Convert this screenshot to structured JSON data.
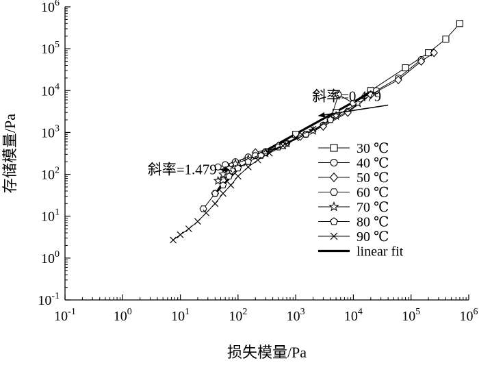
{
  "chart_data": {
    "type": "scatter",
    "scale": "log-log",
    "title": "",
    "xlabel": "损失模量/Pa",
    "ylabel": "存储模量/Pa",
    "xlim": [
      0.1,
      1000000
    ],
    "ylim": [
      0.1,
      1000000
    ],
    "tick_mantissa": "10",
    "x_tick_exponents": [
      "-1",
      "0",
      "1",
      "2",
      "3",
      "4",
      "5",
      "6"
    ],
    "y_tick_exponents": [
      "-1",
      "0",
      "1",
      "2",
      "3",
      "4",
      "5",
      "6"
    ],
    "legend_position": "lower-right",
    "annotations": [
      {
        "id": "slope-high",
        "text": "斜率=0.479",
        "point": [
          2500,
          2500
        ],
        "tail": [
          40000,
          4500
        ]
      },
      {
        "id": "slope-low",
        "text": "斜率=1.479",
        "point": [
          50,
          130
        ],
        "tail": [
          70,
          130
        ]
      }
    ],
    "series": [
      {
        "name": "30 ℃",
        "marker": "square",
        "points": [
          [
            1000,
            900
          ],
          [
            5000,
            3000
          ],
          [
            20000,
            10000
          ],
          [
            80000,
            35000
          ],
          [
            200000,
            80000
          ],
          [
            400000,
            170000
          ],
          [
            700000,
            400000
          ]
        ]
      },
      {
        "name": "40 ℃",
        "marker": "circle",
        "points": [
          [
            45,
            150
          ],
          [
            60,
            170
          ],
          [
            90,
            200
          ],
          [
            150,
            260
          ],
          [
            300,
            350
          ],
          [
            700,
            550
          ],
          [
            1500,
            900
          ],
          [
            3000,
            1500
          ],
          [
            8000,
            3200
          ],
          [
            25000,
            10000
          ],
          [
            60000,
            20000
          ],
          [
            150000,
            55000
          ]
        ]
      },
      {
        "name": "50 ℃",
        "marker": "diamond",
        "points": [
          [
            200,
            330
          ],
          [
            500,
            480
          ],
          [
            1200,
            800
          ],
          [
            3000,
            1400
          ],
          [
            8000,
            3000
          ],
          [
            20000,
            8000
          ],
          [
            60000,
            18000
          ],
          [
            150000,
            50000
          ],
          [
            250000,
            80000
          ]
        ]
      },
      {
        "name": "60 ℃",
        "marker": "hexagon",
        "points": [
          [
            25,
            15
          ],
          [
            40,
            35
          ],
          [
            55,
            70
          ],
          [
            80,
            120
          ],
          [
            120,
            190
          ],
          [
            200,
            280
          ],
          [
            500,
            450
          ],
          [
            1500,
            900
          ],
          [
            4000,
            2000
          ],
          [
            5500,
            8000
          ],
          [
            10000,
            5000
          ]
        ]
      },
      {
        "name": "70 ℃",
        "marker": "star",
        "points": [
          [
            45,
            70
          ],
          [
            55,
            100
          ],
          [
            70,
            140
          ],
          [
            90,
            180
          ],
          [
            150,
            230
          ],
          [
            300,
            320
          ],
          [
            700,
            550
          ],
          [
            2000,
            1100
          ],
          [
            5000,
            2500
          ],
          [
            12000,
            5000
          ]
        ]
      },
      {
        "name": "80 ℃",
        "marker": "pentagon",
        "points": [
          [
            40,
            35
          ],
          [
            55,
            55
          ],
          [
            70,
            90
          ],
          [
            100,
            140
          ],
          [
            150,
            200
          ],
          [
            250,
            280
          ],
          [
            600,
            480
          ],
          [
            1500,
            900
          ],
          [
            4000,
            2000
          ]
        ]
      },
      {
        "name": "90 ℃",
        "marker": "x",
        "points": [
          [
            7.5,
            2.7
          ],
          [
            10,
            3.6
          ],
          [
            14,
            5
          ],
          [
            20,
            7.5
          ],
          [
            28,
            12
          ],
          [
            40,
            20
          ],
          [
            55,
            35
          ],
          [
            75,
            55
          ],
          [
            100,
            90
          ],
          [
            150,
            150
          ],
          [
            220,
            220
          ],
          [
            350,
            320
          ],
          [
            600,
            480
          ],
          [
            1000,
            750
          ],
          [
            2000,
            1200
          ]
        ]
      }
    ],
    "linear_fit": {
      "name": "linear fit",
      "segments": [
        [
          [
            40,
            35
          ],
          [
            160,
            270
          ]
        ],
        [
          [
            200,
            270
          ],
          [
            20000,
            9000
          ]
        ]
      ]
    }
  }
}
